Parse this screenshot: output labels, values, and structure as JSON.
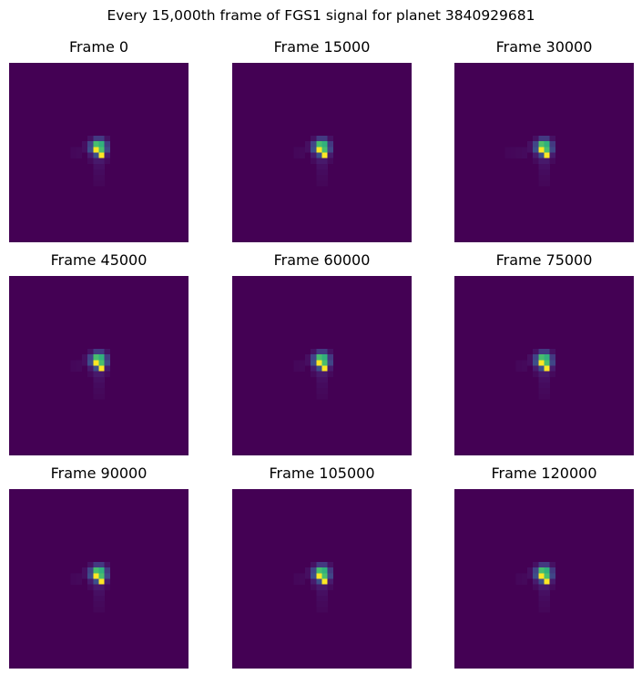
{
  "figure": {
    "title": "Every 15,000th frame of FGS1 signal for planet 3840929681"
  },
  "chart_data": {
    "type": "heatmap",
    "title": "Every 15,000th frame of FGS1 signal for planet 3840929681",
    "colormap": "viridis",
    "grid": false,
    "axes_visible": false,
    "image_size": [
      32,
      32
    ],
    "panels": [
      {
        "title": "Frame 0",
        "peak": [
          16,
          15
        ],
        "halo": 0.05
      },
      {
        "title": "Frame 15000",
        "peak": [
          16,
          15
        ],
        "halo": 0.05
      },
      {
        "title": "Frame 30000",
        "peak": [
          16,
          15
        ],
        "halo": 0.06
      },
      {
        "title": "Frame 45000",
        "peak": [
          16,
          15
        ],
        "halo": 0.05
      },
      {
        "title": "Frame 60000",
        "peak": [
          16,
          15
        ],
        "halo": 0.05
      },
      {
        "title": "Frame 75000",
        "peak": [
          16,
          15
        ],
        "halo": 0.05
      },
      {
        "title": "Frame 90000",
        "peak": [
          16,
          15
        ],
        "halo": 0.05
      },
      {
        "title": "Frame 105000",
        "peak": [
          16,
          15
        ],
        "halo": 0.05
      },
      {
        "title": "Frame 120000",
        "peak": [
          16,
          15
        ],
        "halo": 0.05
      }
    ]
  }
}
